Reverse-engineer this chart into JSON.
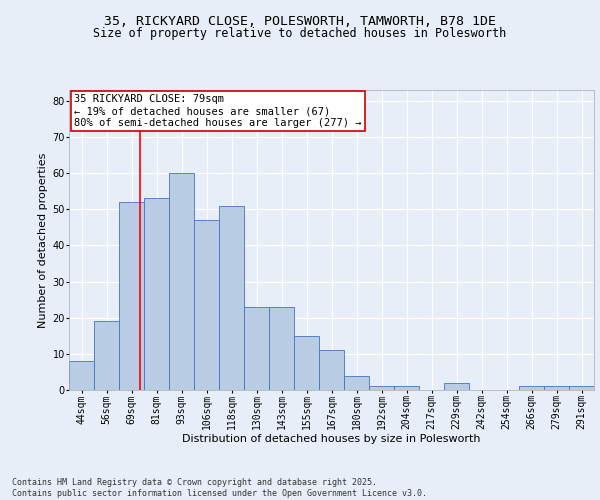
{
  "title1": "35, RICKYARD CLOSE, POLESWORTH, TAMWORTH, B78 1DE",
  "title2": "Size of property relative to detached houses in Polesworth",
  "xlabel": "Distribution of detached houses by size in Polesworth",
  "ylabel": "Number of detached properties",
  "bin_labels": [
    "44sqm",
    "56sqm",
    "69sqm",
    "81sqm",
    "93sqm",
    "106sqm",
    "118sqm",
    "130sqm",
    "143sqm",
    "155sqm",
    "167sqm",
    "180sqm",
    "192sqm",
    "204sqm",
    "217sqm",
    "229sqm",
    "242sqm",
    "254sqm",
    "266sqm",
    "279sqm",
    "291sqm"
  ],
  "bin_edges": [
    44,
    56,
    69,
    81,
    93,
    106,
    118,
    130,
    143,
    155,
    167,
    180,
    192,
    204,
    217,
    229,
    242,
    254,
    266,
    279,
    291
  ],
  "counts": [
    8,
    19,
    52,
    53,
    60,
    47,
    51,
    23,
    23,
    15,
    11,
    4,
    1,
    1,
    0,
    2,
    0,
    0,
    1,
    1,
    1
  ],
  "bar_color": "#b8cce4",
  "bar_edge_color": "#4472c4",
  "property_size": 79,
  "vline_color": "#ff0000",
  "annotation_text": "35 RICKYARD CLOSE: 79sqm\n← 19% of detached houses are smaller (67)\n80% of semi-detached houses are larger (277) →",
  "annotation_box_color": "#ffffff",
  "annotation_box_edge": "#cc0000",
  "ylim": [
    0,
    83
  ],
  "yticks": [
    0,
    10,
    20,
    30,
    40,
    50,
    60,
    70,
    80
  ],
  "background_color": "#e8eef7",
  "footer_text": "Contains HM Land Registry data © Crown copyright and database right 2025.\nContains public sector information licensed under the Open Government Licence v3.0.",
  "grid_color": "#ffffff",
  "title_fontsize": 9.5,
  "subtitle_fontsize": 8.5,
  "axis_label_fontsize": 8,
  "tick_fontsize": 7,
  "annotation_fontsize": 7.5,
  "footer_fontsize": 6
}
